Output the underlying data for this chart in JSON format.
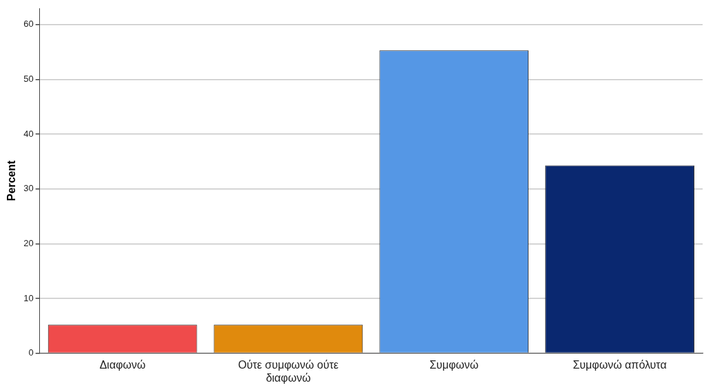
{
  "chart_data": {
    "type": "bar",
    "ylabel": "Percent",
    "categories": [
      "Διαφωνώ",
      "Ούτε συμφωνώ ούτε διαφωνώ",
      "Συμφωνώ",
      "Συμφωνώ απόλυτα"
    ],
    "values": [
      5.2,
      5.2,
      55.3,
      34.3
    ],
    "colors": [
      "#ef4b4b",
      "#e08a0d",
      "#5597e5",
      "#0a2870"
    ],
    "ylim": [
      0,
      63
    ],
    "yticks": [
      0,
      10,
      20,
      30,
      40,
      50,
      60
    ],
    "grid": "y",
    "legend": false
  }
}
